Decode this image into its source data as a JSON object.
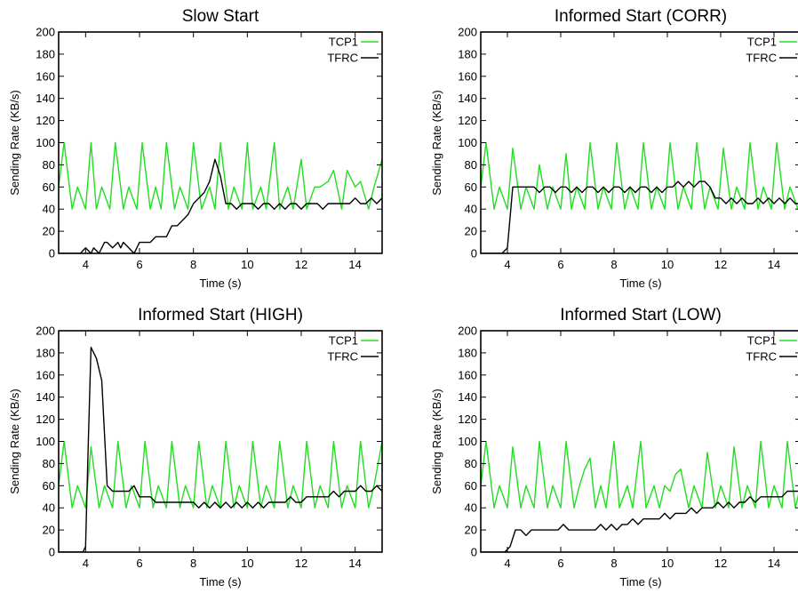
{
  "colors": {
    "tcp": "#22dd22",
    "tfrc": "#000000"
  },
  "chart_data": [
    {
      "type": "line",
      "title": "Slow Start",
      "xlabel": "Time (s)",
      "ylabel": "Sending Rate (KB/s)",
      "xlim": [
        3,
        15
      ],
      "ylim": [
        0,
        200
      ],
      "xticks": [
        4,
        6,
        8,
        10,
        12,
        14
      ],
      "yticks": [
        0,
        20,
        40,
        60,
        80,
        100,
        120,
        140,
        160,
        180,
        200
      ],
      "legend_position": "top-right",
      "series": [
        {
          "name": "TCP1",
          "color": "#22dd22",
          "x": [
            3.0,
            3.2,
            3.5,
            3.7,
            4.0,
            4.2,
            4.4,
            4.6,
            4.9,
            5.1,
            5.4,
            5.6,
            5.9,
            6.1,
            6.4,
            6.6,
            6.8,
            7.0,
            7.3,
            7.5,
            7.8,
            8.0,
            8.3,
            8.6,
            8.8,
            9.0,
            9.3,
            9.5,
            9.8,
            10.0,
            10.2,
            10.5,
            10.7,
            11.0,
            11.2,
            11.5,
            11.7,
            12.0,
            12.2,
            12.5,
            12.7,
            13.0,
            13.2,
            13.5,
            13.7,
            14.0,
            14.2,
            14.5,
            14.7,
            15.0
          ],
          "y": [
            60,
            100,
            40,
            60,
            40,
            100,
            40,
            60,
            40,
            100,
            40,
            60,
            40,
            100,
            40,
            60,
            40,
            100,
            40,
            60,
            40,
            100,
            40,
            60,
            40,
            100,
            40,
            60,
            40,
            100,
            40,
            60,
            40,
            100,
            40,
            60,
            40,
            85,
            40,
            60,
            60,
            65,
            75,
            40,
            75,
            60,
            65,
            40,
            60,
            85
          ]
        },
        {
          "name": "TFRC",
          "color": "#000000",
          "x": [
            3.0,
            3.8,
            4.0,
            4.2,
            4.3,
            4.5,
            4.6,
            4.7,
            4.8,
            5.0,
            5.2,
            5.3,
            5.4,
            5.6,
            5.8,
            6.0,
            6.2,
            6.4,
            6.6,
            6.8,
            7.0,
            7.2,
            7.4,
            7.6,
            7.8,
            8.0,
            8.2,
            8.4,
            8.6,
            8.8,
            9.0,
            9.2,
            9.4,
            9.6,
            9.8,
            10.0,
            10.2,
            10.4,
            10.6,
            10.8,
            11.0,
            11.2,
            11.4,
            11.6,
            11.8,
            12.0,
            12.2,
            12.4,
            12.6,
            12.8,
            13.0,
            13.2,
            13.4,
            13.6,
            13.8,
            14.0,
            14.2,
            14.4,
            14.6,
            14.8,
            15.0
          ],
          "y": [
            0,
            0,
            5,
            0,
            5,
            0,
            5,
            10,
            10,
            5,
            10,
            5,
            10,
            5,
            0,
            10,
            10,
            10,
            15,
            15,
            15,
            25,
            25,
            30,
            35,
            45,
            50,
            55,
            65,
            85,
            70,
            45,
            45,
            40,
            45,
            45,
            45,
            40,
            45,
            45,
            40,
            45,
            40,
            45,
            45,
            40,
            45,
            45,
            45,
            40,
            45,
            45,
            45,
            45,
            45,
            50,
            45,
            45,
            50,
            45,
            50
          ]
        }
      ]
    },
    {
      "type": "line",
      "title": "Informed Start (CORR)",
      "xlabel": "Time (s)",
      "ylabel": "Sending Rate (KB/s)",
      "xlim": [
        3,
        15
      ],
      "ylim": [
        0,
        200
      ],
      "xticks": [
        4,
        6,
        8,
        10,
        12,
        14
      ],
      "yticks": [
        0,
        20,
        40,
        60,
        80,
        100,
        120,
        140,
        160,
        180,
        200
      ],
      "legend_position": "top-right",
      "series": [
        {
          "name": "TCP1",
          "color": "#22dd22",
          "x": [
            3.0,
            3.2,
            3.5,
            3.7,
            4.0,
            4.2,
            4.5,
            4.7,
            5.0,
            5.2,
            5.5,
            5.7,
            6.0,
            6.2,
            6.4,
            6.6,
            6.9,
            7.1,
            7.4,
            7.6,
            7.9,
            8.1,
            8.4,
            8.6,
            8.9,
            9.1,
            9.4,
            9.6,
            9.9,
            10.1,
            10.4,
            10.6,
            10.9,
            11.1,
            11.4,
            11.6,
            11.9,
            12.1,
            12.4,
            12.6,
            12.9,
            13.1,
            13.4,
            13.6,
            13.9,
            14.1,
            14.4,
            14.6,
            14.9,
            15.0
          ],
          "y": [
            60,
            100,
            40,
            60,
            40,
            95,
            40,
            60,
            40,
            80,
            40,
            60,
            40,
            90,
            40,
            60,
            40,
            100,
            40,
            60,
            40,
            100,
            40,
            60,
            40,
            100,
            40,
            60,
            40,
            100,
            40,
            60,
            40,
            100,
            40,
            60,
            40,
            95,
            40,
            60,
            40,
            100,
            40,
            60,
            40,
            100,
            40,
            60,
            40,
            45
          ]
        },
        {
          "name": "TFRC",
          "color": "#000000",
          "x": [
            3.0,
            3.8,
            4.0,
            4.2,
            4.4,
            4.6,
            4.8,
            5.0,
            5.2,
            5.4,
            5.6,
            5.8,
            6.0,
            6.2,
            6.4,
            6.6,
            6.8,
            7.0,
            7.2,
            7.4,
            7.6,
            7.8,
            8.0,
            8.2,
            8.4,
            8.6,
            8.8,
            9.0,
            9.2,
            9.4,
            9.6,
            9.8,
            10.0,
            10.2,
            10.4,
            10.6,
            10.8,
            11.0,
            11.2,
            11.4,
            11.6,
            11.8,
            12.0,
            12.2,
            12.4,
            12.6,
            12.8,
            13.0,
            13.2,
            13.4,
            13.6,
            13.8,
            14.0,
            14.2,
            14.4,
            14.6,
            14.8,
            15.0
          ],
          "y": [
            0,
            0,
            5,
            60,
            60,
            60,
            60,
            60,
            55,
            60,
            60,
            55,
            60,
            60,
            55,
            60,
            55,
            60,
            60,
            55,
            60,
            55,
            60,
            60,
            55,
            60,
            55,
            60,
            60,
            55,
            60,
            55,
            60,
            60,
            65,
            60,
            65,
            60,
            65,
            65,
            60,
            50,
            50,
            45,
            50,
            45,
            50,
            45,
            45,
            50,
            45,
            50,
            45,
            50,
            45,
            50,
            45,
            45
          ]
        }
      ]
    },
    {
      "type": "line",
      "title": "Informed Start (HIGH)",
      "xlabel": "Time (s)",
      "ylabel": "Sending Rate (KB/s)",
      "xlim": [
        3,
        15
      ],
      "ylim": [
        0,
        200
      ],
      "xticks": [
        4,
        6,
        8,
        10,
        12,
        14
      ],
      "yticks": [
        0,
        20,
        40,
        60,
        80,
        100,
        120,
        140,
        160,
        180,
        200
      ],
      "legend_position": "top-right",
      "series": [
        {
          "name": "TCP1",
          "color": "#22dd22",
          "x": [
            3.0,
            3.2,
            3.5,
            3.7,
            4.0,
            4.2,
            4.5,
            4.7,
            5.0,
            5.2,
            5.5,
            5.7,
            6.0,
            6.2,
            6.5,
            6.7,
            7.0,
            7.2,
            7.5,
            7.7,
            8.0,
            8.2,
            8.5,
            8.7,
            9.0,
            9.2,
            9.5,
            9.7,
            10.0,
            10.2,
            10.5,
            10.7,
            11.0,
            11.2,
            11.5,
            11.7,
            12.0,
            12.2,
            12.5,
            12.7,
            13.0,
            13.2,
            13.5,
            13.7,
            14.0,
            14.2,
            14.5,
            14.7,
            15.0
          ],
          "y": [
            60,
            100,
            40,
            60,
            40,
            95,
            40,
            60,
            40,
            100,
            40,
            60,
            40,
            100,
            40,
            60,
            40,
            100,
            40,
            60,
            40,
            100,
            40,
            60,
            40,
            100,
            40,
            60,
            40,
            100,
            40,
            60,
            40,
            100,
            40,
            60,
            40,
            100,
            40,
            60,
            40,
            100,
            40,
            60,
            40,
            100,
            40,
            60,
            100
          ]
        },
        {
          "name": "TFRC",
          "color": "#000000",
          "x": [
            3.0,
            3.9,
            4.0,
            4.1,
            4.2,
            4.4,
            4.6,
            4.8,
            5.0,
            5.2,
            5.4,
            5.6,
            5.8,
            6.0,
            6.2,
            6.4,
            6.6,
            6.8,
            7.0,
            7.2,
            7.4,
            7.6,
            7.8,
            8.0,
            8.2,
            8.4,
            8.6,
            8.8,
            9.0,
            9.2,
            9.4,
            9.6,
            9.8,
            10.0,
            10.2,
            10.4,
            10.6,
            10.8,
            11.0,
            11.2,
            11.4,
            11.6,
            11.8,
            12.0,
            12.2,
            12.4,
            12.6,
            12.8,
            13.0,
            13.2,
            13.4,
            13.6,
            13.8,
            14.0,
            14.2,
            14.4,
            14.6,
            14.8,
            15.0
          ],
          "y": [
            0,
            0,
            5,
            100,
            185,
            175,
            155,
            60,
            55,
            55,
            55,
            55,
            60,
            50,
            50,
            50,
            45,
            45,
            45,
            45,
            45,
            45,
            45,
            45,
            40,
            45,
            40,
            45,
            40,
            45,
            40,
            45,
            40,
            45,
            40,
            45,
            40,
            45,
            45,
            45,
            45,
            50,
            45,
            45,
            50,
            50,
            50,
            50,
            50,
            55,
            50,
            55,
            55,
            55,
            60,
            55,
            55,
            60,
            55
          ]
        }
      ]
    },
    {
      "type": "line",
      "title": "Informed Start (LOW)",
      "xlabel": "Time (s)",
      "ylabel": "Sending Rate (KB/s)",
      "xlim": [
        3,
        15
      ],
      "ylim": [
        0,
        200
      ],
      "xticks": [
        4,
        6,
        8,
        10,
        12,
        14
      ],
      "yticks": [
        0,
        20,
        40,
        60,
        80,
        100,
        120,
        140,
        160,
        180,
        200
      ],
      "legend_position": "top-right",
      "series": [
        {
          "name": "TCP1",
          "color": "#22dd22",
          "x": [
            3.0,
            3.2,
            3.5,
            3.7,
            4.0,
            4.2,
            4.5,
            4.7,
            5.0,
            5.2,
            5.5,
            5.7,
            6.0,
            6.2,
            6.5,
            6.7,
            6.9,
            7.1,
            7.3,
            7.5,
            7.7,
            8.0,
            8.2,
            8.5,
            8.7,
            9.0,
            9.2,
            9.5,
            9.7,
            9.9,
            10.1,
            10.3,
            10.5,
            10.8,
            11.0,
            11.3,
            11.5,
            11.8,
            12.0,
            12.3,
            12.5,
            12.8,
            13.0,
            13.3,
            13.5,
            13.8,
            14.0,
            14.3,
            14.5,
            14.8,
            15.0
          ],
          "y": [
            60,
            100,
            40,
            60,
            40,
            95,
            40,
            60,
            40,
            100,
            40,
            60,
            40,
            100,
            40,
            60,
            75,
            85,
            40,
            60,
            40,
            100,
            40,
            60,
            40,
            100,
            40,
            60,
            40,
            60,
            55,
            70,
            75,
            40,
            60,
            40,
            90,
            40,
            60,
            40,
            95,
            40,
            60,
            40,
            100,
            40,
            60,
            40,
            100,
            40,
            60
          ]
        },
        {
          "name": "TFRC",
          "color": "#000000",
          "x": [
            3.0,
            3.9,
            4.1,
            4.3,
            4.5,
            4.7,
            4.9,
            5.1,
            5.3,
            5.5,
            5.7,
            5.9,
            6.1,
            6.3,
            6.5,
            6.7,
            6.9,
            7.1,
            7.3,
            7.5,
            7.7,
            7.9,
            8.1,
            8.3,
            8.5,
            8.7,
            8.9,
            9.1,
            9.3,
            9.5,
            9.7,
            9.9,
            10.1,
            10.3,
            10.5,
            10.7,
            10.9,
            11.1,
            11.3,
            11.5,
            11.7,
            11.9,
            12.1,
            12.3,
            12.5,
            12.7,
            12.9,
            13.1,
            13.3,
            13.5,
            13.7,
            13.9,
            14.1,
            14.3,
            14.5,
            14.7,
            14.9,
            15.0
          ],
          "y": [
            0,
            0,
            5,
            20,
            20,
            15,
            20,
            20,
            20,
            20,
            20,
            20,
            25,
            20,
            20,
            20,
            20,
            20,
            20,
            25,
            20,
            25,
            20,
            25,
            25,
            30,
            25,
            30,
            30,
            30,
            30,
            35,
            30,
            35,
            35,
            35,
            40,
            35,
            40,
            40,
            40,
            45,
            40,
            45,
            40,
            45,
            45,
            50,
            45,
            50,
            50,
            50,
            50,
            50,
            55,
            55,
            55,
            55
          ]
        }
      ]
    }
  ]
}
